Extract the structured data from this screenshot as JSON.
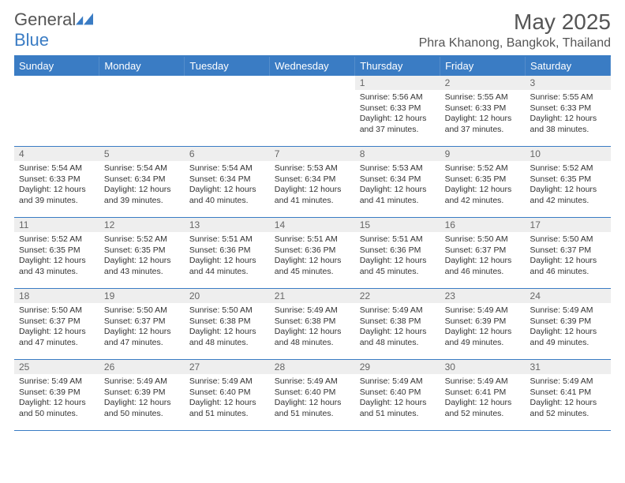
{
  "brand": {
    "name_a": "General",
    "name_b": "Blue"
  },
  "title": "May 2025",
  "location": "Phra Khanong, Bangkok, Thailand",
  "colors": {
    "accent": "#3a7cc4",
    "header_text": "#ffffff",
    "daynum_bg": "#eeeeee"
  },
  "weekdays": [
    "Sunday",
    "Monday",
    "Tuesday",
    "Wednesday",
    "Thursday",
    "Friday",
    "Saturday"
  ],
  "weeks": [
    [
      null,
      null,
      null,
      null,
      {
        "n": "1",
        "sr": "5:56 AM",
        "ss": "6:33 PM",
        "dl": "12 hours and 37 minutes."
      },
      {
        "n": "2",
        "sr": "5:55 AM",
        "ss": "6:33 PM",
        "dl": "12 hours and 37 minutes."
      },
      {
        "n": "3",
        "sr": "5:55 AM",
        "ss": "6:33 PM",
        "dl": "12 hours and 38 minutes."
      }
    ],
    [
      {
        "n": "4",
        "sr": "5:54 AM",
        "ss": "6:33 PM",
        "dl": "12 hours and 39 minutes."
      },
      {
        "n": "5",
        "sr": "5:54 AM",
        "ss": "6:34 PM",
        "dl": "12 hours and 39 minutes."
      },
      {
        "n": "6",
        "sr": "5:54 AM",
        "ss": "6:34 PM",
        "dl": "12 hours and 40 minutes."
      },
      {
        "n": "7",
        "sr": "5:53 AM",
        "ss": "6:34 PM",
        "dl": "12 hours and 41 minutes."
      },
      {
        "n": "8",
        "sr": "5:53 AM",
        "ss": "6:34 PM",
        "dl": "12 hours and 41 minutes."
      },
      {
        "n": "9",
        "sr": "5:52 AM",
        "ss": "6:35 PM",
        "dl": "12 hours and 42 minutes."
      },
      {
        "n": "10",
        "sr": "5:52 AM",
        "ss": "6:35 PM",
        "dl": "12 hours and 42 minutes."
      }
    ],
    [
      {
        "n": "11",
        "sr": "5:52 AM",
        "ss": "6:35 PM",
        "dl": "12 hours and 43 minutes."
      },
      {
        "n": "12",
        "sr": "5:52 AM",
        "ss": "6:35 PM",
        "dl": "12 hours and 43 minutes."
      },
      {
        "n": "13",
        "sr": "5:51 AM",
        "ss": "6:36 PM",
        "dl": "12 hours and 44 minutes."
      },
      {
        "n": "14",
        "sr": "5:51 AM",
        "ss": "6:36 PM",
        "dl": "12 hours and 45 minutes."
      },
      {
        "n": "15",
        "sr": "5:51 AM",
        "ss": "6:36 PM",
        "dl": "12 hours and 45 minutes."
      },
      {
        "n": "16",
        "sr": "5:50 AM",
        "ss": "6:37 PM",
        "dl": "12 hours and 46 minutes."
      },
      {
        "n": "17",
        "sr": "5:50 AM",
        "ss": "6:37 PM",
        "dl": "12 hours and 46 minutes."
      }
    ],
    [
      {
        "n": "18",
        "sr": "5:50 AM",
        "ss": "6:37 PM",
        "dl": "12 hours and 47 minutes."
      },
      {
        "n": "19",
        "sr": "5:50 AM",
        "ss": "6:37 PM",
        "dl": "12 hours and 47 minutes."
      },
      {
        "n": "20",
        "sr": "5:50 AM",
        "ss": "6:38 PM",
        "dl": "12 hours and 48 minutes."
      },
      {
        "n": "21",
        "sr": "5:49 AM",
        "ss": "6:38 PM",
        "dl": "12 hours and 48 minutes."
      },
      {
        "n": "22",
        "sr": "5:49 AM",
        "ss": "6:38 PM",
        "dl": "12 hours and 48 minutes."
      },
      {
        "n": "23",
        "sr": "5:49 AM",
        "ss": "6:39 PM",
        "dl": "12 hours and 49 minutes."
      },
      {
        "n": "24",
        "sr": "5:49 AM",
        "ss": "6:39 PM",
        "dl": "12 hours and 49 minutes."
      }
    ],
    [
      {
        "n": "25",
        "sr": "5:49 AM",
        "ss": "6:39 PM",
        "dl": "12 hours and 50 minutes."
      },
      {
        "n": "26",
        "sr": "5:49 AM",
        "ss": "6:39 PM",
        "dl": "12 hours and 50 minutes."
      },
      {
        "n": "27",
        "sr": "5:49 AM",
        "ss": "6:40 PM",
        "dl": "12 hours and 51 minutes."
      },
      {
        "n": "28",
        "sr": "5:49 AM",
        "ss": "6:40 PM",
        "dl": "12 hours and 51 minutes."
      },
      {
        "n": "29",
        "sr": "5:49 AM",
        "ss": "6:40 PM",
        "dl": "12 hours and 51 minutes."
      },
      {
        "n": "30",
        "sr": "5:49 AM",
        "ss": "6:41 PM",
        "dl": "12 hours and 52 minutes."
      },
      {
        "n": "31",
        "sr": "5:49 AM",
        "ss": "6:41 PM",
        "dl": "12 hours and 52 minutes."
      }
    ]
  ],
  "labels": {
    "sunrise": "Sunrise:",
    "sunset": "Sunset:",
    "daylight": "Daylight:"
  }
}
